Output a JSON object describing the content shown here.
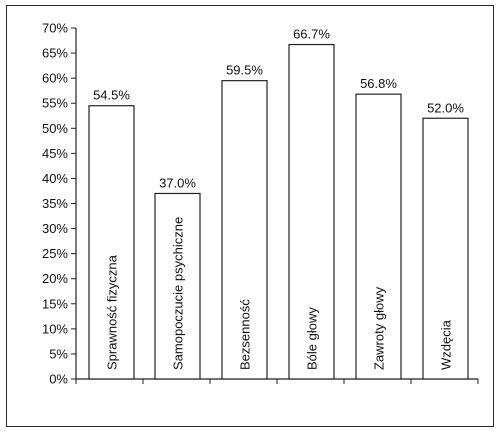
{
  "chart_data": {
    "type": "bar",
    "title": "",
    "xlabel": "",
    "ylabel": "",
    "categories": [
      "Sprawność fizyczna",
      "Samopoczucie psychiczne",
      "Bezsenność",
      "Bóle głowy",
      "Zawroty głowy",
      "Wzdęcia"
    ],
    "values": [
      54.5,
      37.0,
      59.5,
      66.7,
      56.8,
      52.0
    ],
    "data_labels": [
      "54.5%",
      "37.0%",
      "59.5%",
      "66.7%",
      "56.8%",
      "52.0%"
    ],
    "ylim": [
      0,
      70
    ],
    "y_ticks": [
      "0%",
      "5%",
      "10%",
      "15%",
      "20%",
      "25%",
      "30%",
      "35%",
      "40%",
      "45%",
      "50%",
      "55%",
      "60%",
      "65%",
      "70%"
    ],
    "category_labels_inside_bars": true,
    "grid": false,
    "legend": "none",
    "colors": {
      "bar_fill": "#ffffff",
      "bar_stroke": "#222222",
      "axis": "#222222",
      "frame": "#2a2a2a"
    }
  }
}
